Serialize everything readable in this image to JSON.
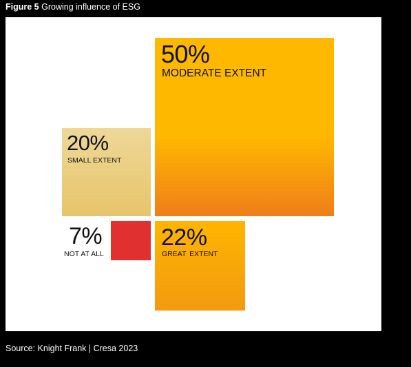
{
  "figure": {
    "label": "Figure 5",
    "title": "Growing influence of ESG"
  },
  "source": "Source: Knight Frank | Cresa 2023",
  "chart_data": {
    "type": "treemap",
    "title": "Growing influence of ESG",
    "categories": [
      "MODERATE EXTENT",
      "SMALL EXTENT",
      "NOT AT ALL",
      "GREAT EXTENT"
    ],
    "values": [
      50,
      20,
      7,
      22
    ],
    "value_labels": [
      "50%",
      "20%",
      "7%",
      "22%"
    ],
    "unit": "%",
    "colors": {
      "moderate": [
        "#ffb800",
        "#ef7d1a"
      ],
      "small": [
        "#eed898",
        "#e6c46a"
      ],
      "not_at_all": "#e03030",
      "great": [
        "#ffb500",
        "#f39a10"
      ]
    }
  }
}
